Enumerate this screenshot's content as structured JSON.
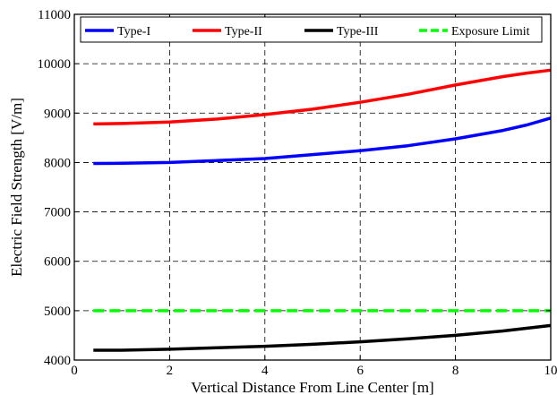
{
  "chart_data": {
    "type": "line",
    "title": "",
    "xlabel": "Vertical Distance From Line Center [m]",
    "ylabel": "Electric Field Strength [V/m]",
    "xlim": [
      0,
      10
    ],
    "ylim": [
      4000,
      11000
    ],
    "xticks": [
      0,
      2,
      4,
      6,
      8,
      10
    ],
    "yticks": [
      4000,
      5000,
      6000,
      7000,
      8000,
      9000,
      10000,
      11000
    ],
    "grid": true,
    "legend_position": "top",
    "series": [
      {
        "name": "Type-I",
        "color": "#0000ff",
        "dash": "solid",
        "x": [
          0.4,
          1,
          2,
          3,
          4,
          5,
          6,
          7,
          8,
          9,
          9.5,
          10
        ],
        "y": [
          7980,
          7985,
          8000,
          8040,
          8080,
          8160,
          8240,
          8340,
          8480,
          8650,
          8760,
          8900
        ]
      },
      {
        "name": "Type-II",
        "color": "#ff0000",
        "dash": "solid",
        "x": [
          0.4,
          1,
          2,
          3,
          4,
          5,
          6,
          7,
          8,
          9,
          9.5,
          10
        ],
        "y": [
          8780,
          8790,
          8820,
          8880,
          8970,
          9080,
          9220,
          9380,
          9570,
          9740,
          9810,
          9870
        ]
      },
      {
        "name": "Type-III",
        "color": "#000000",
        "dash": "solid",
        "x": [
          0.4,
          1,
          2,
          3,
          4,
          5,
          6,
          7,
          8,
          9,
          10
        ],
        "y": [
          4200,
          4200,
          4220,
          4250,
          4280,
          4320,
          4370,
          4430,
          4500,
          4590,
          4700
        ]
      },
      {
        "name": "Exposure Limit",
        "color": "#00ff00",
        "dash": "dashed",
        "x": [
          0.4,
          10
        ],
        "y": [
          5000,
          5000
        ]
      }
    ]
  }
}
